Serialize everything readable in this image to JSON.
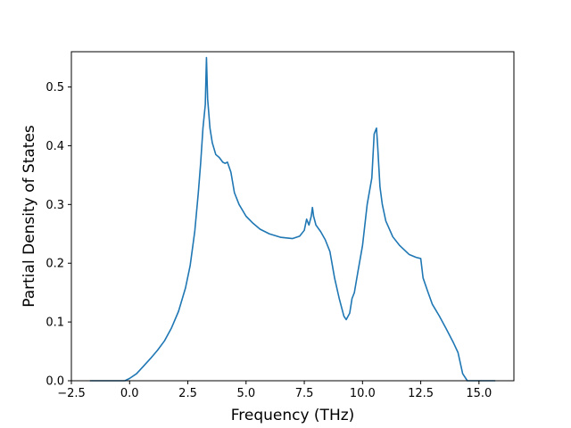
{
  "chart_data": {
    "type": "line",
    "xlabel": "Frequency (THz)",
    "ylabel": "Partial Density of States",
    "xlim": [
      -2.5,
      16.5
    ],
    "ylim": [
      0.0,
      0.56
    ],
    "xticks": [
      -2.5,
      0.0,
      2.5,
      5.0,
      7.5,
      10.0,
      12.5,
      15.0
    ],
    "xtick_labels": [
      "−2.5",
      "0.0",
      "2.5",
      "5.0",
      "7.5",
      "10.0",
      "12.5",
      "15.0"
    ],
    "yticks": [
      0.0,
      0.1,
      0.2,
      0.3,
      0.4,
      0.5
    ],
    "ytick_labels": [
      "0.0",
      "0.1",
      "0.2",
      "0.3",
      "0.4",
      "0.5"
    ],
    "grid": false,
    "line_color": "#1f77b4",
    "series": [
      {
        "x": [
          -1.7,
          -0.2,
          0.0,
          0.3,
          0.6,
          0.9,
          1.2,
          1.5,
          1.8,
          2.1,
          2.4,
          2.6,
          2.8,
          2.95,
          3.05,
          3.15,
          3.25,
          3.3,
          3.35,
          3.45,
          3.55,
          3.7,
          3.85,
          4.0,
          4.1,
          4.2,
          4.35,
          4.5,
          4.7,
          5.0,
          5.3,
          5.6,
          6.0,
          6.5,
          7.0,
          7.3,
          7.5,
          7.6,
          7.7,
          7.8,
          7.85,
          7.9,
          8.0,
          8.2,
          8.4,
          8.6,
          8.8,
          9.0,
          9.2,
          9.3,
          9.45,
          9.55,
          9.65,
          9.8,
          10.0,
          10.2,
          10.4,
          10.5,
          10.6,
          10.65,
          10.75,
          10.85,
          11.0,
          11.3,
          11.6,
          12.0,
          12.3,
          12.5,
          12.6,
          12.8,
          13.0,
          13.3,
          13.6,
          13.9,
          14.1,
          14.2,
          14.3,
          14.5,
          15.0,
          15.7
        ],
        "y": [
          0.0,
          0.0,
          0.004,
          0.012,
          0.025,
          0.038,
          0.052,
          0.068,
          0.09,
          0.118,
          0.158,
          0.196,
          0.255,
          0.32,
          0.37,
          0.43,
          0.47,
          0.55,
          0.48,
          0.43,
          0.405,
          0.385,
          0.38,
          0.372,
          0.37,
          0.372,
          0.355,
          0.32,
          0.3,
          0.28,
          0.268,
          0.258,
          0.25,
          0.244,
          0.242,
          0.246,
          0.256,
          0.275,
          0.265,
          0.28,
          0.295,
          0.28,
          0.265,
          0.254,
          0.24,
          0.22,
          0.175,
          0.14,
          0.11,
          0.104,
          0.115,
          0.14,
          0.15,
          0.185,
          0.23,
          0.3,
          0.345,
          0.42,
          0.43,
          0.4,
          0.33,
          0.3,
          0.272,
          0.245,
          0.23,
          0.215,
          0.21,
          0.208,
          0.175,
          0.152,
          0.13,
          0.11,
          0.088,
          0.065,
          0.048,
          0.03,
          0.012,
          0.0,
          0.0,
          0.0
        ]
      }
    ]
  }
}
